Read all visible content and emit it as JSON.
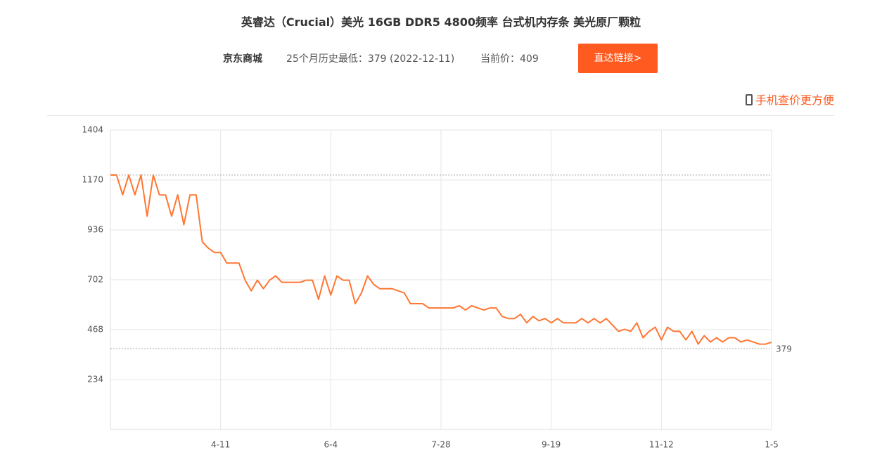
{
  "header": {
    "title": "英睿达（Crucial）美光 16GB DDR5 4800频率 台式机内存条 美光原厂颗粒",
    "store": "京东商城",
    "lowest": "25个月历史最低：379 (2022-12-11)",
    "current": "当前价：409",
    "button": "直达链接>",
    "mobile": "手机查价更方便"
  },
  "chart_data": {
    "type": "line",
    "categories": [
      null,
      null,
      null,
      null,
      null,
      null,
      null,
      null,
      null,
      null,
      null,
      null,
      null,
      null,
      null,
      null,
      null,
      null,
      "4-11",
      null,
      null,
      null,
      null,
      null,
      null,
      null,
      null,
      null,
      null,
      null,
      null,
      null,
      null,
      null,
      null,
      null,
      "6-4",
      null,
      null,
      null,
      null,
      null,
      null,
      null,
      null,
      null,
      null,
      null,
      null,
      null,
      null,
      null,
      null,
      null,
      "7-28",
      null,
      null,
      null,
      null,
      null,
      null,
      null,
      null,
      null,
      null,
      null,
      null,
      null,
      null,
      null,
      null,
      null,
      "9-19",
      null,
      null,
      null,
      null,
      null,
      null,
      null,
      null,
      null,
      null,
      null,
      null,
      null,
      null,
      null,
      null,
      null,
      "11-12",
      null,
      null,
      null,
      null,
      null,
      null,
      null,
      null,
      null,
      null,
      null,
      null,
      null,
      null,
      null,
      null,
      null,
      "1-5"
    ],
    "series": [
      {
        "color": "#ff7733",
        "values": [
          1193,
          1193,
          1100,
          1193,
          1100,
          1193,
          1000,
          1193,
          1100,
          1100,
          1000,
          1100,
          960,
          1100,
          1100,
          880,
          850,
          830,
          830,
          780,
          780,
          780,
          700,
          650,
          700,
          660,
          700,
          720,
          690,
          690,
          690,
          690,
          700,
          700,
          610,
          720,
          630,
          720,
          700,
          700,
          590,
          640,
          720,
          680,
          660,
          660,
          660,
          650,
          640,
          590,
          590,
          590,
          570,
          570,
          570,
          570,
          570,
          580,
          560,
          580,
          570,
          560,
          570,
          570,
          530,
          520,
          520,
          540,
          500,
          530,
          510,
          520,
          500,
          520,
          500,
          500,
          500,
          520,
          500,
          520,
          500,
          520,
          490,
          460,
          470,
          460,
          500,
          430,
          460,
          480,
          420,
          480,
          460,
          460,
          420,
          460,
          400,
          440,
          410,
          430,
          410,
          430,
          430,
          410,
          420,
          410,
          400,
          400,
          409
        ]
      }
    ],
    "ylim": [
      0,
      1404
    ],
    "yticks": [
      234,
      468,
      702,
      936,
      1170,
      1404
    ],
    "grid": true,
    "max_line": 1193,
    "min_line": 379
  }
}
